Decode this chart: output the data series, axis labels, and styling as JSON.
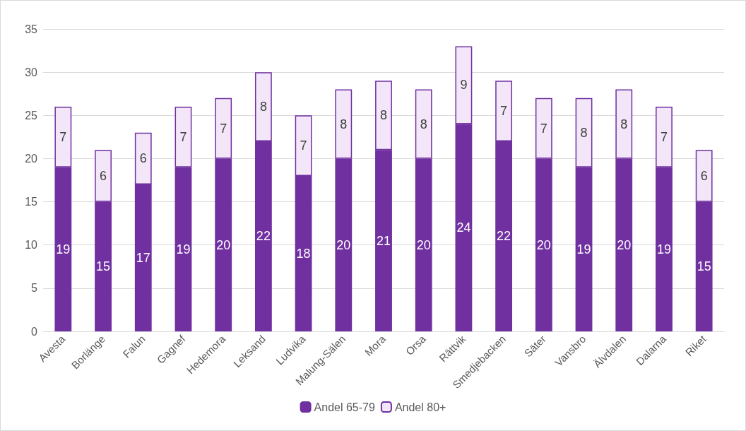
{
  "chart_data": {
    "type": "bar",
    "stacked": true,
    "categories": [
      "Avesta",
      "Borlänge",
      "Falun",
      "Gagnef",
      "Hedemora",
      "Leksand",
      "Ludvika",
      "Malung-Sälen",
      "Mora",
      "Orsa",
      "Rättvik",
      "Smedjebacken",
      "Säter",
      "Vansbro",
      "Älvdalen",
      "Dalarna",
      "Riket"
    ],
    "series": [
      {
        "name": "Andel 65-79",
        "color": "#7030a0",
        "values": [
          19,
          15,
          17,
          19,
          20,
          22,
          18,
          20,
          21,
          20,
          24,
          22,
          20,
          19,
          20,
          19,
          15
        ]
      },
      {
        "name": "Andel 80+",
        "color": "#f2e6f8",
        "values": [
          7,
          6,
          6,
          7,
          7,
          8,
          7,
          8,
          8,
          8,
          9,
          7,
          7,
          8,
          8,
          7,
          6
        ]
      }
    ],
    "ylim": [
      0,
      35
    ],
    "yticks": [
      0,
      5,
      10,
      15,
      20,
      25,
      30,
      35
    ],
    "grid": "y",
    "legend": "bottom",
    "data_labels": true
  }
}
